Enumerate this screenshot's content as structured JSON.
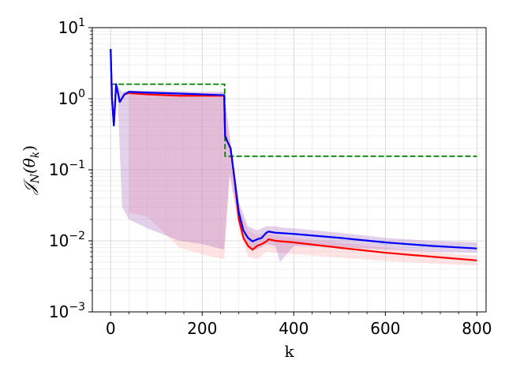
{
  "chart_data": {
    "type": "line",
    "xlabel": "k",
    "ylabel": "𝒥N(θk)",
    "ylabel_parts": {
      "main": "𝒥",
      "sub1": "N",
      "open": "(θ",
      "sub2": "k",
      "close": ")"
    },
    "xlim": [
      -40,
      820
    ],
    "ylim": [
      0.001,
      10
    ],
    "yscale": "log",
    "grid": true,
    "xticks": [
      0,
      200,
      400,
      600,
      800
    ],
    "xtick_labels": [
      "0",
      "200",
      "400",
      "600",
      "800"
    ],
    "yticks": [
      0.001,
      0.01,
      0.1,
      1,
      10
    ],
    "ytick_labels": [
      {
        "base": "10",
        "exp": "−3"
      },
      {
        "base": "10",
        "exp": "−2"
      },
      {
        "base": "10",
        "exp": "−1"
      },
      {
        "base": "10",
        "exp": "0"
      },
      {
        "base": "10",
        "exp": "1"
      }
    ],
    "series": [
      {
        "color": "#008000",
        "style": "dashed",
        "x": [
          0,
          15,
          248,
          249,
          250,
          251,
          252,
          800
        ],
        "y": [
          1.6,
          1.6,
          1.6,
          1.6,
          0.155,
          0.155,
          0.155,
          0.155
        ]
      },
      {
        "color": "#ff0000",
        "style": "solid",
        "x": [
          0,
          3,
          7,
          12,
          20,
          30,
          40,
          80,
          150,
          200,
          248,
          250,
          255,
          262,
          270,
          280,
          290,
          300,
          310,
          320,
          330,
          340,
          345,
          360,
          400,
          500,
          600,
          700,
          800
        ],
        "y": [
          5.0,
          1.0,
          0.42,
          1.6,
          0.9,
          1.15,
          1.2,
          1.15,
          1.1,
          1.1,
          1.1,
          0.3,
          0.25,
          0.2,
          0.08,
          0.02,
          0.011,
          0.0085,
          0.0075,
          0.0085,
          0.009,
          0.0098,
          0.0105,
          0.01,
          0.0095,
          0.008,
          0.0068,
          0.006,
          0.0053
        ]
      },
      {
        "color": "#0000ff",
        "style": "solid",
        "x": [
          0,
          3,
          7,
          12,
          20,
          30,
          40,
          80,
          150,
          200,
          248,
          250,
          255,
          262,
          270,
          280,
          290,
          300,
          310,
          320,
          330,
          340,
          345,
          360,
          400,
          500,
          600,
          700,
          800
        ],
        "y": [
          5.0,
          1.0,
          0.42,
          1.6,
          0.9,
          1.15,
          1.25,
          1.22,
          1.18,
          1.15,
          1.12,
          0.3,
          0.25,
          0.2,
          0.08,
          0.025,
          0.014,
          0.011,
          0.0098,
          0.0105,
          0.011,
          0.013,
          0.0135,
          0.013,
          0.0125,
          0.011,
          0.0095,
          0.0085,
          0.0078
        ]
      }
    ],
    "bands": [
      {
        "color": "#ffb3b3",
        "opacity": 0.35,
        "x": [
          40,
          80,
          150,
          200,
          248,
          260,
          280,
          300,
          320,
          340,
          360,
          400,
          500,
          600,
          700,
          800
        ],
        "low": [
          0.025,
          0.022,
          0.008,
          0.0065,
          0.0055,
          0.08,
          0.015,
          0.006,
          0.0055,
          0.007,
          0.0068,
          0.0065,
          0.0058,
          0.0052,
          0.0048,
          0.0045
        ],
        "high": [
          1.25,
          1.25,
          1.2,
          1.2,
          1.2,
          0.3,
          0.03,
          0.014,
          0.012,
          0.013,
          0.012,
          0.011,
          0.0095,
          0.008,
          0.007,
          0.0062
        ]
      },
      {
        "color": "#9b59b6",
        "opacity": 0.28,
        "x": [
          15,
          25,
          40,
          80,
          150,
          200,
          248,
          260,
          280,
          300,
          320,
          340,
          360,
          370,
          400,
          500,
          600,
          700,
          800
        ],
        "low": [
          1.2,
          0.03,
          0.02,
          0.015,
          0.01,
          0.009,
          0.0075,
          0.09,
          0.018,
          0.008,
          0.0075,
          0.009,
          0.0085,
          0.005,
          0.0085,
          0.0082,
          0.0075,
          0.007,
          0.0068
        ],
        "high": [
          1.5,
          1.25,
          1.3,
          1.3,
          1.28,
          1.25,
          1.25,
          0.3,
          0.035,
          0.016,
          0.014,
          0.016,
          0.016,
          0.0155,
          0.015,
          0.013,
          0.011,
          0.01,
          0.0095
        ]
      }
    ]
  }
}
